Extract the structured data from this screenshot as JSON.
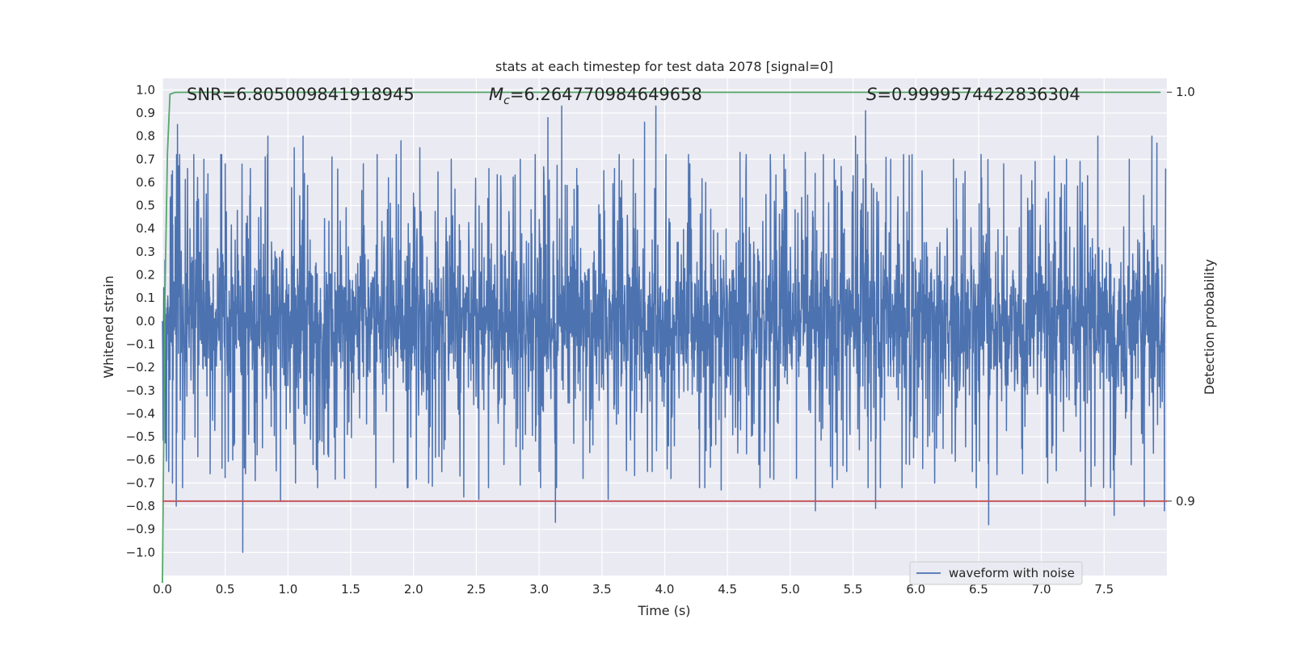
{
  "chart_data": {
    "type": "line",
    "title": "stats at each timestep for test data 2078 [signal=0]",
    "xlabel": "Time (s)",
    "ylabel": "Whitened strain",
    "y2label": "Detection probability",
    "xlim": [
      0.0,
      8.0
    ],
    "ylim": [
      -1.1,
      1.05
    ],
    "y2lim": [
      0.8818,
      1.0034
    ],
    "xticks": [
      "0.0",
      "0.5",
      "1.0",
      "1.5",
      "2.0",
      "2.5",
      "3.0",
      "3.5",
      "4.0",
      "4.5",
      "5.0",
      "5.5",
      "6.0",
      "6.5",
      "7.0",
      "7.5"
    ],
    "yticks": [
      "1.0",
      "0.9",
      "0.8",
      "0.7",
      "0.6",
      "0.5",
      "0.4",
      "0.3",
      "0.2",
      "0.1",
      "0.0",
      "-0.1",
      "-0.2",
      "-0.3",
      "-0.4",
      "-0.5",
      "-0.6",
      "-0.7",
      "-0.8",
      "-0.9",
      "-1.0"
    ],
    "y2ticks": [
      "1.0",
      "0.9"
    ],
    "grid": true,
    "legend_position": "lower-right",
    "annotations": {
      "snr": "SNR=6.805009841918945",
      "mc_symbol": "M",
      "mc_subscript": "c",
      "mc_value": "=6.264770984649658",
      "s_symbol": "S",
      "s_value": "=0.9999574422836304"
    },
    "series": [
      {
        "name": "waveform with noise",
        "axis": "left",
        "color": "#4c72b0",
        "noise_envelope": 0.3,
        "peaks": [
          {
            "x": 0.05,
            "y": -0.65
          },
          {
            "x": 0.08,
            "y": 0.65
          },
          {
            "x": 0.08,
            "y": -0.7
          },
          {
            "x": 0.12,
            "y": 0.85
          },
          {
            "x": 0.11,
            "y": -0.8
          },
          {
            "x": 0.16,
            "y": -0.72
          },
          {
            "x": 0.2,
            "y": 0.66
          },
          {
            "x": 0.25,
            "y": 0.72
          },
          {
            "x": 0.33,
            "y": 0.7
          },
          {
            "x": 0.38,
            "y": -0.66
          },
          {
            "x": 0.5,
            "y": 0.68
          },
          {
            "x": 0.56,
            "y": -0.6
          },
          {
            "x": 0.64,
            "y": -1.0
          },
          {
            "x": 0.7,
            "y": 0.66
          },
          {
            "x": 0.84,
            "y": 0.8
          },
          {
            "x": 0.94,
            "y": -0.78
          },
          {
            "x": 1.05,
            "y": 0.75
          },
          {
            "x": 1.06,
            "y": -0.7
          },
          {
            "x": 1.12,
            "y": 0.8
          },
          {
            "x": 1.2,
            "y": -0.62
          },
          {
            "x": 1.35,
            "y": 0.71
          },
          {
            "x": 1.45,
            "y": -0.68
          },
          {
            "x": 1.6,
            "y": 0.68
          },
          {
            "x": 1.7,
            "y": -0.72
          },
          {
            "x": 1.8,
            "y": 0.62
          },
          {
            "x": 1.9,
            "y": 0.78
          },
          {
            "x": 1.95,
            "y": -0.72
          },
          {
            "x": 2.05,
            "y": 0.75
          },
          {
            "x": 2.12,
            "y": -0.7
          },
          {
            "x": 2.3,
            "y": 0.7
          },
          {
            "x": 2.4,
            "y": -0.76
          },
          {
            "x": 2.52,
            "y": -0.77
          },
          {
            "x": 2.6,
            "y": 0.66
          },
          {
            "x": 2.72,
            "y": -0.62
          },
          {
            "x": 2.85,
            "y": 0.7
          },
          {
            "x": 3.0,
            "y": -0.65
          },
          {
            "x": 3.07,
            "y": 0.88
          },
          {
            "x": 3.13,
            "y": -0.87
          },
          {
            "x": 3.18,
            "y": 0.93
          },
          {
            "x": 3.3,
            "y": 0.66
          },
          {
            "x": 3.35,
            "y": -0.68
          },
          {
            "x": 3.55,
            "y": -0.77
          },
          {
            "x": 3.6,
            "y": 0.66
          },
          {
            "x": 3.75,
            "y": 0.7
          },
          {
            "x": 3.84,
            "y": 0.86
          },
          {
            "x": 3.9,
            "y": -0.65
          },
          {
            "x": 3.93,
            "y": 0.93
          },
          {
            "x": 4.05,
            "y": -0.68
          },
          {
            "x": 4.2,
            "y": 0.68
          },
          {
            "x": 4.32,
            "y": -0.72
          },
          {
            "x": 4.45,
            "y": -0.73
          },
          {
            "x": 4.6,
            "y": 0.73
          },
          {
            "x": 4.75,
            "y": -0.62
          },
          {
            "x": 4.95,
            "y": 0.72
          },
          {
            "x": 5.05,
            "y": -0.68
          },
          {
            "x": 5.12,
            "y": 0.73
          },
          {
            "x": 5.2,
            "y": -0.82
          },
          {
            "x": 5.35,
            "y": 0.7
          },
          {
            "x": 5.45,
            "y": -0.65
          },
          {
            "x": 5.52,
            "y": 0.8
          },
          {
            "x": 5.6,
            "y": 0.91
          },
          {
            "x": 5.62,
            "y": -0.72
          },
          {
            "x": 5.68,
            "y": -0.81
          },
          {
            "x": 5.8,
            "y": 0.7
          },
          {
            "x": 5.95,
            "y": -0.62
          },
          {
            "x": 6.05,
            "y": 0.65
          },
          {
            "x": 6.15,
            "y": -0.7
          },
          {
            "x": 6.3,
            "y": 0.7
          },
          {
            "x": 6.45,
            "y": -0.65
          },
          {
            "x": 6.52,
            "y": 0.72
          },
          {
            "x": 6.58,
            "y": -0.88
          },
          {
            "x": 6.7,
            "y": 0.68
          },
          {
            "x": 6.85,
            "y": -0.66
          },
          {
            "x": 6.95,
            "y": 0.69
          },
          {
            "x": 7.05,
            "y": -0.7
          },
          {
            "x": 7.2,
            "y": 0.7
          },
          {
            "x": 7.35,
            "y": -0.8
          },
          {
            "x": 7.45,
            "y": 0.8
          },
          {
            "x": 7.55,
            "y": -0.72
          },
          {
            "x": 7.58,
            "y": -0.84
          },
          {
            "x": 7.7,
            "y": 0.7
          },
          {
            "x": 7.82,
            "y": -0.8
          },
          {
            "x": 7.88,
            "y": 0.8
          },
          {
            "x": 7.92,
            "y": 0.77
          },
          {
            "x": 7.98,
            "y": -0.82
          }
        ]
      },
      {
        "name": "",
        "axis": "right",
        "color": "#55a868",
        "x": [
          0.0,
          0.02,
          0.04,
          0.06,
          0.1,
          0.2,
          0.5,
          1.0,
          2.0,
          4.0,
          6.0,
          7.95
        ],
        "y": [
          0.88,
          0.95,
          0.985,
          0.9995,
          0.99995,
          0.99996,
          0.99996,
          0.99996,
          0.99996,
          0.99996,
          0.99996,
          0.99996
        ]
      },
      {
        "name": "",
        "axis": "right",
        "color": "#c44e52",
        "x": [
          0.0,
          8.0
        ],
        "y": [
          0.9,
          0.9
        ]
      }
    ]
  }
}
